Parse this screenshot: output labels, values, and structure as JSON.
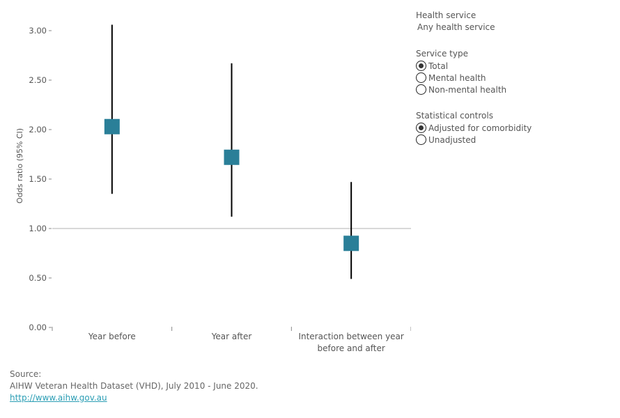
{
  "panel": {
    "health_service_label": "Health service",
    "health_service_value": "Any health service",
    "service_type_label": "Service type",
    "service_type_options": [
      {
        "label": "Total",
        "checked": true
      },
      {
        "label": "Mental health",
        "checked": false
      },
      {
        "label": "Non-mental health",
        "checked": false
      }
    ],
    "stat_controls_label": "Statistical controls",
    "stat_controls_options": [
      {
        "label": "Adjusted for comorbidity",
        "checked": true
      },
      {
        "label": "Unadjusted",
        "checked": false
      }
    ]
  },
  "source": {
    "heading": "Source:",
    "text": "AIHW Veteran Health Dataset (VHD), July 2010 - June 2020.",
    "link": "http://www.aihw.gov.au"
  },
  "chart_data": {
    "type": "scatter",
    "ylabel": "Odds ratio (95% CI)",
    "ylim": [
      0,
      3.1
    ],
    "yticks": [
      "0.00",
      "0.50",
      "1.00",
      "1.50",
      "2.00",
      "2.50",
      "3.00"
    ],
    "reference_line": 1.0,
    "categories": [
      [
        "Year before"
      ],
      [
        "Year after"
      ],
      [
        "Interaction between year",
        "before and after"
      ]
    ],
    "points": [
      {
        "value": 2.03,
        "ci_low": 1.35,
        "ci_high": 3.06
      },
      {
        "value": 1.72,
        "ci_low": 1.12,
        "ci_high": 2.67
      },
      {
        "value": 0.85,
        "ci_low": 0.49,
        "ci_high": 1.47
      }
    ],
    "marker_color": "#2a7f98",
    "ci_color": "#000000",
    "reference_color": "#cccccc"
  }
}
